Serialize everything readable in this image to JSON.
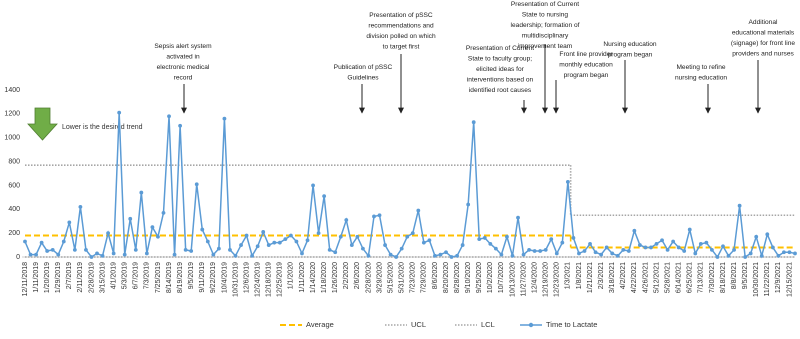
{
  "chart_data": {
    "type": "line",
    "categories": [
      "12/11/2018",
      null,
      "1/11/2019",
      null,
      "1/20/2019",
      null,
      "1/29/2019",
      null,
      "2/7/2019",
      null,
      "2/11/2019",
      null,
      "2/28/2019",
      null,
      "3/15/2019",
      null,
      "4/1/2019",
      null,
      "5/3/2019",
      null,
      "6/7/2019",
      null,
      "7/3/2019",
      null,
      "7/25/2019",
      null,
      "8/14/2019",
      null,
      "8/19/2019",
      null,
      "9/5/2019",
      null,
      "9/11/2019",
      null,
      "9/22/2019",
      null,
      "10/4/2019",
      null,
      "10/31/2019",
      null,
      "12/6/2019",
      null,
      "12/24/2019",
      null,
      "12/18/2019",
      null,
      "12/25/2019",
      null,
      "1/1/2020",
      null,
      "1/11/2020",
      null,
      "1/14/2020",
      null,
      "1/18/2020",
      null,
      "1/26/2020",
      null,
      "2/2/2020",
      null,
      "2/6/2020",
      null,
      "2/28/2020",
      null,
      "3/29/2020",
      null,
      "5/15/2020",
      null,
      "5/31/2020",
      null,
      "7/23/2020",
      null,
      "7/29/2020",
      null,
      "8/6/2020",
      null,
      "8/20/2020",
      null,
      "8/28/2020",
      null,
      "9/10/2020",
      null,
      "9/25/2020",
      null,
      "10/2/2020",
      null,
      "10/7/2020",
      null,
      "10/13/2020",
      null,
      "11/27/2020",
      null,
      "12/4/2020",
      null,
      "12/19/2020",
      null,
      "12/23/2020",
      null,
      "1/3/2021",
      null,
      "1/8/2021",
      null,
      "1/21/2021",
      null,
      "2/3/2021",
      null,
      "3/18/2021",
      null,
      "4/2/2021",
      null,
      "4/22/2021",
      null,
      "4/26/2021",
      null,
      "5/12/2021",
      null,
      "5/28/2021",
      null,
      "6/14/2021",
      null,
      "6/25/2021",
      null,
      "7/13/2021",
      null,
      "7/30/2021",
      null,
      "8/18/2021",
      null,
      "8/8/2021",
      null,
      "9/5/2021",
      null,
      "10/30/2021",
      null,
      "11/22/2021",
      null,
      "12/9/2021",
      null,
      "12/15/2021",
      null
    ],
    "series": [
      {
        "name": "Average",
        "color": "#ffc000",
        "style": "dashed",
        "segments": [
          {
            "from": "12/11/2018",
            "to": "1/3/2021",
            "value": 180
          },
          {
            "from": "1/8/2021",
            "to": "12/15/2021",
            "value": 80
          }
        ]
      },
      {
        "name": "UCL",
        "color": "#a6a6a6",
        "style": "dotted",
        "segments": [
          {
            "from": "12/11/2018",
            "to": "1/3/2021",
            "value": 770
          },
          {
            "from": "1/8/2021",
            "to": "12/15/2021",
            "value": 350
          }
        ]
      },
      {
        "name": "LCL",
        "color": "#a6a6a6",
        "style": "dotted",
        "segments": [
          {
            "from": "12/11/2018",
            "to": "1/3/2021",
            "value": 0
          },
          {
            "from": "1/8/2021",
            "to": "12/15/2021",
            "value": 0
          }
        ]
      },
      {
        "name": "Time to Lactate",
        "color": "#5b9bd5",
        "style": "line-markers",
        "values": [
          130,
          20,
          20,
          120,
          50,
          60,
          20,
          130,
          290,
          60,
          420,
          60,
          0,
          30,
          10,
          200,
          30,
          1210,
          20,
          320,
          60,
          540,
          30,
          250,
          170,
          370,
          1180,
          20,
          1100,
          60,
          50,
          610,
          230,
          130,
          20,
          70,
          1160,
          60,
          10,
          100,
          180,
          10,
          90,
          210,
          100,
          120,
          120,
          150,
          180,
          130,
          30,
          140,
          600,
          200,
          510,
          60,
          40,
          170,
          310,
          100,
          170,
          70,
          10,
          340,
          350,
          100,
          20,
          0,
          70,
          170,
          200,
          390,
          120,
          140,
          10,
          20,
          40,
          0,
          10,
          100,
          440,
          1130,
          150,
          160,
          110,
          70,
          20,
          170,
          10,
          330,
          20,
          60,
          50,
          50,
          60,
          150,
          30,
          120,
          630,
          160,
          30,
          50,
          110,
          40,
          20,
          80,
          30,
          10,
          60,
          50,
          220,
          100,
          80,
          80,
          110,
          140,
          60,
          130,
          80,
          50,
          230,
          30,
          110,
          120,
          60,
          0,
          90,
          10,
          60,
          430,
          0,
          30,
          170,
          10,
          190,
          80,
          10,
          40,
          40,
          30
        ]
      }
    ],
    "ylim": [
      0,
      1400
    ],
    "yticks": [
      0,
      200,
      400,
      600,
      800,
      1000,
      1200,
      1400
    ],
    "trend_note": "Lower is the desired trend",
    "annotations": [
      {
        "lines": [
          "Sepsis alert system",
          "activated in",
          "electronic medical",
          "record"
        ]
      },
      {
        "lines": [
          "Publication of pSSC",
          "Guidelines"
        ]
      },
      {
        "lines": [
          "Presentation of pSSC",
          "recommendations and",
          "division polled on which",
          "to target first"
        ]
      },
      {
        "lines": [
          "Presentation of Current",
          "State to faculty group;",
          "elicited ideas for",
          "interventions based on",
          "identified root causes"
        ]
      },
      {
        "lines": [
          "Presentation of Current",
          "State to nursing",
          "leadership; formation of",
          "multidisciplinary",
          "improvement team"
        ]
      },
      {
        "lines": [
          "Front line provider",
          "monthly education",
          "program began"
        ]
      },
      {
        "lines": [
          "Nursing education",
          "program began"
        ]
      },
      {
        "lines": [
          "Meeting to refine",
          "nursing education"
        ]
      },
      {
        "lines": [
          "Additional",
          "educational materials",
          "(signage) for front line",
          "providers and nurses"
        ]
      }
    ]
  }
}
